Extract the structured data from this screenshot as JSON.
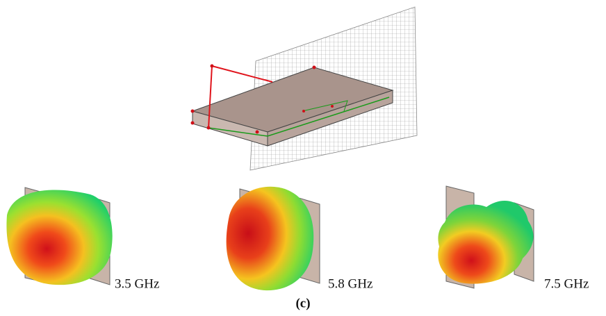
{
  "figure": {
    "panels": [
      {
        "label": "3.5 GHz"
      },
      {
        "label": "5.8 GHz"
      },
      {
        "label": "7.5 GHz"
      }
    ],
    "caption": "(c)"
  }
}
